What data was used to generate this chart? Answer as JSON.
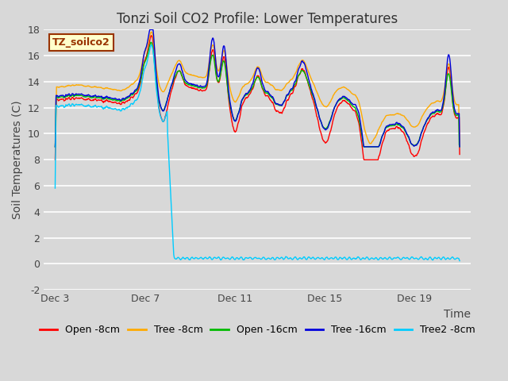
{
  "title": "Tonzi Soil CO2 Profile: Lower Temperatures",
  "xlabel": "Time",
  "ylabel": "Soil Temperatures (C)",
  "ylim": [
    -2,
    18
  ],
  "yticks": [
    -2,
    0,
    2,
    4,
    6,
    8,
    10,
    12,
    14,
    16,
    18
  ],
  "bg_color": "#d8d8d8",
  "watermark_text": "TZ_soilco2",
  "watermark_bg": "#ffffcc",
  "watermark_border": "#993300",
  "legend_labels": [
    "Open -8cm",
    "Tree -8cm",
    "Open -16cm",
    "Tree -16cm",
    "Tree2 -8cm"
  ],
  "line_colors": [
    "#ff0000",
    "#ffaa00",
    "#00bb00",
    "#0000dd",
    "#00ccff"
  ],
  "xtick_labels": [
    "Dec 3",
    "Dec 7",
    "Dec 11",
    "Dec 15",
    "Dec 19"
  ],
  "xtick_positions": [
    0,
    4,
    8,
    12,
    16
  ],
  "xlim": [
    -0.5,
    18.5
  ],
  "title_fontsize": 12,
  "axis_label_fontsize": 10,
  "tick_fontsize": 9,
  "legend_fontsize": 9
}
